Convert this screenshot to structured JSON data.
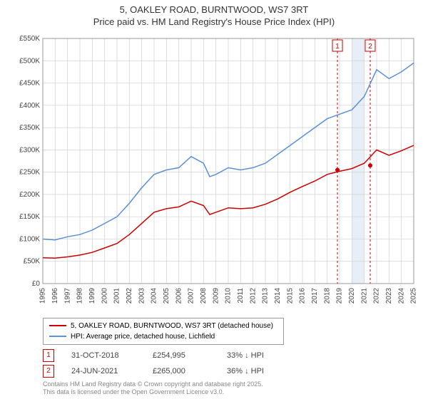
{
  "title_line1": "5, OAKLEY ROAD, BURNTWOOD, WS7 3RT",
  "title_line2": "Price paid vs. HM Land Registry's House Price Index (HPI)",
  "chart": {
    "type": "line",
    "background_color": "#ffffff",
    "grid_color": "#d0d0d0",
    "axis_color": "#999999",
    "highlight_band_color": "#e8eef7",
    "highlight_band_start": 2020,
    "highlight_band_end": 2021,
    "x": {
      "min": 1995,
      "max": 2025,
      "tick_step": 1,
      "label_rotation": -90,
      "label_fontsize": 10
    },
    "y": {
      "min": 0,
      "max": 550000,
      "tick_step": 50000,
      "prefix": "£",
      "suffix": "K",
      "divide_by": 1000,
      "label_fontsize": 10
    },
    "series": [
      {
        "id": "hpi",
        "label": "HPI: Average price, detached house, Lichfield",
        "color": "#5b8fd6",
        "line_width": 1.5,
        "points": [
          [
            1995,
            100000
          ],
          [
            1996,
            98000
          ],
          [
            1997,
            105000
          ],
          [
            1998,
            110000
          ],
          [
            1999,
            120000
          ],
          [
            2000,
            135000
          ],
          [
            2001,
            150000
          ],
          [
            2002,
            180000
          ],
          [
            2003,
            215000
          ],
          [
            2004,
            245000
          ],
          [
            2005,
            255000
          ],
          [
            2006,
            260000
          ],
          [
            2007,
            285000
          ],
          [
            2008,
            270000
          ],
          [
            2008.5,
            240000
          ],
          [
            2009,
            245000
          ],
          [
            2010,
            260000
          ],
          [
            2011,
            255000
          ],
          [
            2012,
            260000
          ],
          [
            2013,
            270000
          ],
          [
            2014,
            290000
          ],
          [
            2015,
            310000
          ],
          [
            2016,
            330000
          ],
          [
            2017,
            350000
          ],
          [
            2018,
            370000
          ],
          [
            2019,
            380000
          ],
          [
            2020,
            390000
          ],
          [
            2021,
            420000
          ],
          [
            2022,
            480000
          ],
          [
            2023,
            460000
          ],
          [
            2024,
            475000
          ],
          [
            2025,
            495000
          ]
        ]
      },
      {
        "id": "price_paid",
        "label": "5, OAKLEY ROAD, BURNTWOOD, WS7 3RT (detached house)",
        "color": "#cc0000",
        "line_width": 1.5,
        "points": [
          [
            1995,
            58000
          ],
          [
            1996,
            57000
          ],
          [
            1997,
            60000
          ],
          [
            1998,
            64000
          ],
          [
            1999,
            70000
          ],
          [
            2000,
            80000
          ],
          [
            2001,
            90000
          ],
          [
            2002,
            110000
          ],
          [
            2003,
            135000
          ],
          [
            2004,
            160000
          ],
          [
            2005,
            168000
          ],
          [
            2006,
            172000
          ],
          [
            2007,
            185000
          ],
          [
            2008,
            175000
          ],
          [
            2008.5,
            155000
          ],
          [
            2009,
            160000
          ],
          [
            2010,
            170000
          ],
          [
            2011,
            168000
          ],
          [
            2012,
            170000
          ],
          [
            2013,
            178000
          ],
          [
            2014,
            190000
          ],
          [
            2015,
            205000
          ],
          [
            2016,
            218000
          ],
          [
            2017,
            230000
          ],
          [
            2018,
            245000
          ],
          [
            2019,
            252000
          ],
          [
            2020,
            258000
          ],
          [
            2021,
            270000
          ],
          [
            2022,
            300000
          ],
          [
            2023,
            288000
          ],
          [
            2024,
            298000
          ],
          [
            2025,
            310000
          ]
        ]
      }
    ],
    "markers": [
      {
        "n": "1",
        "x": 2018.83,
        "y": 254995,
        "line_color": "#cc0000",
        "dash": "3,3"
      },
      {
        "n": "2",
        "x": 2021.48,
        "y": 265000,
        "line_color": "#cc0000",
        "dash": "3,3"
      }
    ],
    "marker_dot_color": "#cc0000",
    "marker_dot_radius": 3,
    "marker_label_box_border": "#cc0000",
    "marker_label_color": "#cc0000"
  },
  "legend": {
    "items": [
      {
        "color": "#cc0000",
        "label": "5, OAKLEY ROAD, BURNTWOOD, WS7 3RT (detached house)"
      },
      {
        "color": "#5b8fd6",
        "label": "HPI: Average price, detached house, Lichfield"
      }
    ]
  },
  "marker_table": [
    {
      "n": "1",
      "date": "31-OCT-2018",
      "price": "£254,995",
      "delta": "33% ↓ HPI"
    },
    {
      "n": "2",
      "date": "24-JUN-2021",
      "price": "£265,000",
      "delta": "36% ↓ HPI"
    }
  ],
  "attribution_line1": "Contains HM Land Registry data © Crown copyright and database right 2025.",
  "attribution_line2": "This data is licensed under the Open Government Licence v3.0."
}
